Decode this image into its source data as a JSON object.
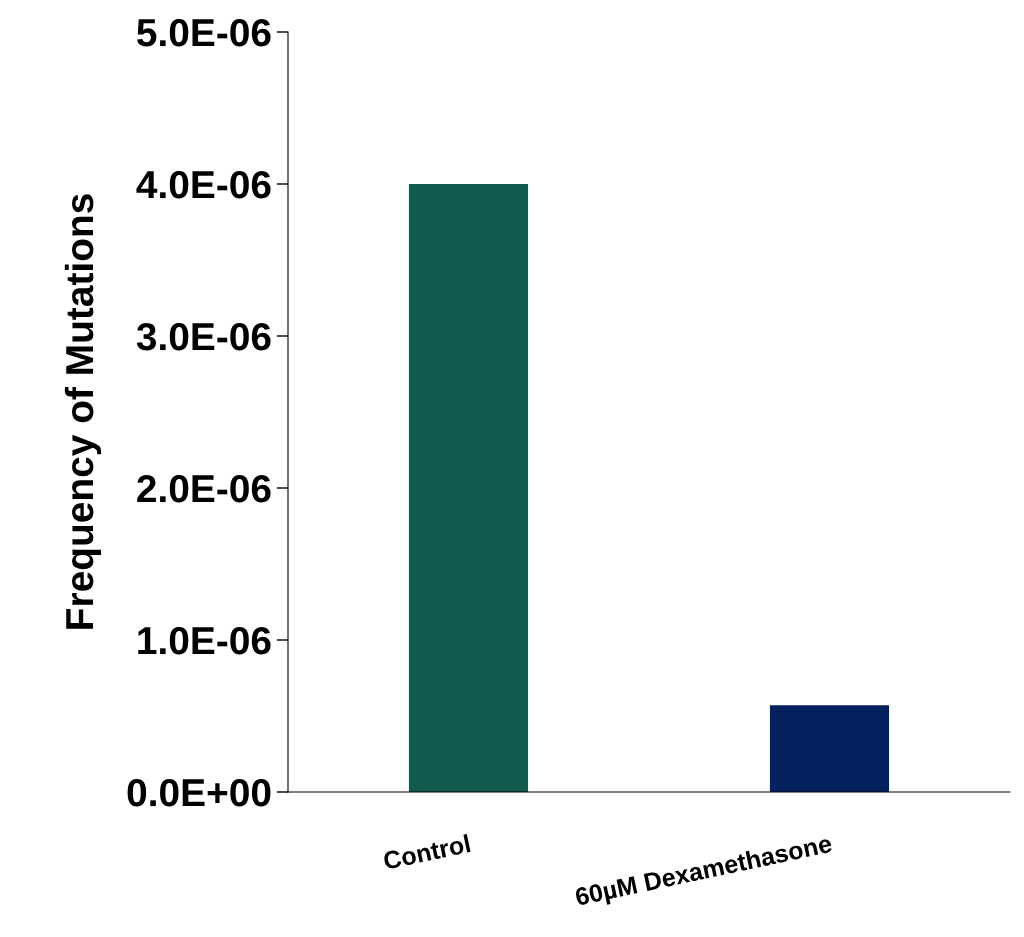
{
  "chart_data": {
    "type": "bar",
    "ylabel": "Frequency of Mutations",
    "categories": [
      "Control",
      "60µM Dexamethasone"
    ],
    "values": [
      4e-06,
      5.7e-07
    ],
    "colors": [
      "#115a4e",
      "#03215e"
    ],
    "ylim": [
      0,
      5e-06
    ],
    "yticks": [
      {
        "value": 0,
        "label": "0.0E+00"
      },
      {
        "value": 1e-06,
        "label": "1.0E-06"
      },
      {
        "value": 2e-06,
        "label": "2.0E-06"
      },
      {
        "value": 3e-06,
        "label": "3.0E-06"
      },
      {
        "value": 4e-06,
        "label": "4.0E-06"
      },
      {
        "value": 5e-06,
        "label": "5.0E-06"
      }
    ],
    "grid": false,
    "legend": false
  }
}
